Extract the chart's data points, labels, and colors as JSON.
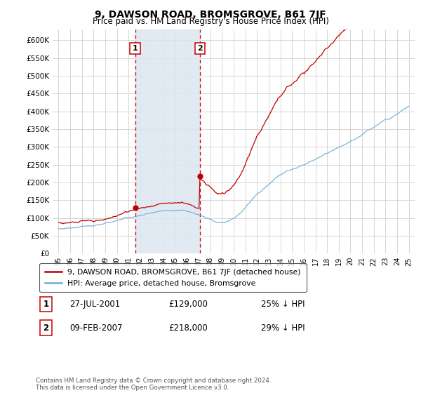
{
  "title": "9, DAWSON ROAD, BROMSGROVE, B61 7JF",
  "subtitle": "Price paid vs. HM Land Registry's House Price Index (HPI)",
  "hpi_label": "HPI: Average price, detached house, Bromsgrove",
  "property_label": "9, DAWSON ROAD, BROMSGROVE, B61 7JF (detached house)",
  "footer": "Contains HM Land Registry data © Crown copyright and database right 2024.\nThis data is licensed under the Open Government Licence v3.0.",
  "transactions": [
    {
      "date": 2001.57,
      "price": 129000,
      "label": "1",
      "text": "27-JUL-2001",
      "pct": "25% ↓ HPI"
    },
    {
      "date": 2007.11,
      "price": 218000,
      "label": "2",
      "text": "09-FEB-2007",
      "pct": "29% ↓ HPI"
    }
  ],
  "ylim": [
    0,
    630000
  ],
  "xlim": [
    1994.5,
    2025.5
  ],
  "yticks": [
    0,
    50000,
    100000,
    150000,
    200000,
    250000,
    300000,
    350000,
    400000,
    450000,
    500000,
    550000,
    600000
  ],
  "hpi_color": "#6baed6",
  "property_color": "#c00000",
  "shade_color": "#dce6f1",
  "vline_color": "#cc0000",
  "background_color": "#ffffff",
  "grid_color": "#d0d0d0"
}
